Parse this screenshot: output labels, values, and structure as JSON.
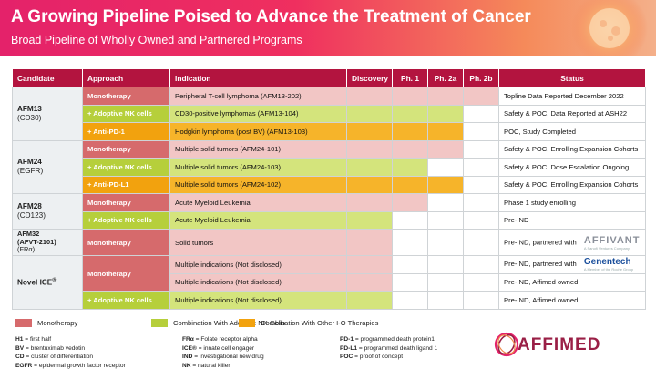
{
  "header": {
    "title": "A Growing Pipeline Poised to Advance the Treatment of Cancer",
    "subtitle": "Broad Pipeline of Wholly Owned and Partnered Programs"
  },
  "columns": [
    "Candidate",
    "Approach",
    "Indication",
    "Discovery",
    "Ph. 1",
    "Ph. 2a",
    "Ph. 2b",
    "Status"
  ],
  "candidates": {
    "afm13": {
      "name": "AFM13",
      "sub": "(CD30)"
    },
    "afm24": {
      "name": "AFM24",
      "sub": "(EGFR)"
    },
    "afm28": {
      "name": "AFM28",
      "sub": "(CD123)"
    },
    "afm32": {
      "name": "AFM32",
      "sub": "(AFVT-2101)",
      "sub2": "(FRα)"
    },
    "novel": {
      "name": "Novel ICE",
      "sup": "®"
    }
  },
  "rows": [
    {
      "approach": "Monotherapy",
      "indication": "Peripheral T-cell lymphoma (AFM13-202)",
      "status": "Topline Data Reported December 2022"
    },
    {
      "approach": "+ Adoptive NK cells",
      "indication": "CD30-positive lymphomas (AFM13-104)",
      "status": "Safety & POC, Data Reported at ASH22"
    },
    {
      "approach": "+ Anti-PD-1",
      "indication": "Hodgkin lymphoma (post BV) (AFM13-103)",
      "status": "POC, Study Completed"
    },
    {
      "approach": "Monotherapy",
      "indication": "Multiple solid tumors (AFM24-101)",
      "status": "Safety & POC, Enrolling Expansion Cohorts"
    },
    {
      "approach": "+ Adoptive NK cells",
      "indication": "Multiple solid tumors  (AFM24-103)",
      "status": "Safety & POC, Dose Escalation Ongoing"
    },
    {
      "approach": "+ Anti-PD-L1",
      "indication": "Multiple solid tumors (AFM24-102)",
      "status": "Safety & POC, Enrolling Expansion Cohorts"
    },
    {
      "approach": "Monotherapy",
      "indication": "Acute Myeloid Leukemia",
      "status": "Phase 1 study enrolling"
    },
    {
      "approach": "+ Adoptive NK cells",
      "indication": "Acute Myeloid Leukemia",
      "status": "Pre-IND"
    },
    {
      "approach": "Monotherapy",
      "indication": "Solid tumors",
      "status": "Pre-IND, partnered with"
    },
    {
      "approach": "Monotherapy",
      "indication": "Multiple indications (Not disclosed)",
      "status": "Pre-IND, partnered with"
    },
    {
      "approach": "",
      "indication": "Multiple indications (Not disclosed)",
      "status": "Pre-IND, Affimed owned"
    },
    {
      "approach": "+ Adoptive NK cells",
      "indication": "Multiple indications (Not disclosed)",
      "status": "Pre-IND, Affimed owned"
    }
  ],
  "partners": {
    "affivant": {
      "name": "AFFIVANT",
      "tagline": "A Sanofi Ventures Company"
    },
    "genentech": {
      "name": "Genentech",
      "tagline": "A Member of the Roche Group"
    }
  },
  "legend": [
    {
      "label": "Monotherapy",
      "color": "#d66a6c"
    },
    {
      "label": "Combination With Adoptive NK Cells",
      "color": "#b6cf3b"
    },
    {
      "label": "Combination With Other I-O Therapies",
      "color": "#f2a20e"
    }
  ],
  "abbreviations": {
    "col1": [
      {
        "k": "H1",
        "v": " = first half"
      },
      {
        "k": "BV",
        "v": " = brentuximab vedotin"
      },
      {
        "k": "CD",
        "v": " = cluster of differentiation"
      },
      {
        "k": "EGFR",
        "v": " = epidermal growth factor receptor"
      }
    ],
    "col2": [
      {
        "k": "FRα",
        "v": " = Folate receptor alpha"
      },
      {
        "k": "ICE®",
        "v": " = innate cell engager"
      },
      {
        "k": "IND",
        "v": " = investigational new drug"
      },
      {
        "k": "NK",
        "v": " = natural killer"
      }
    ],
    "col3": [
      {
        "k": "PD-1",
        "v": " = programmed death protein1"
      },
      {
        "k": "PD-L1",
        "v": " = programmed death ligand 1"
      },
      {
        "k": "POC",
        "v": " = proof of concept"
      }
    ]
  },
  "company": {
    "logo_text": "AFFIMED"
  },
  "colors": {
    "header": "#b3143f",
    "mono": "#d66a6c",
    "nk": "#b6cf3b",
    "io": "#f2a20e"
  }
}
